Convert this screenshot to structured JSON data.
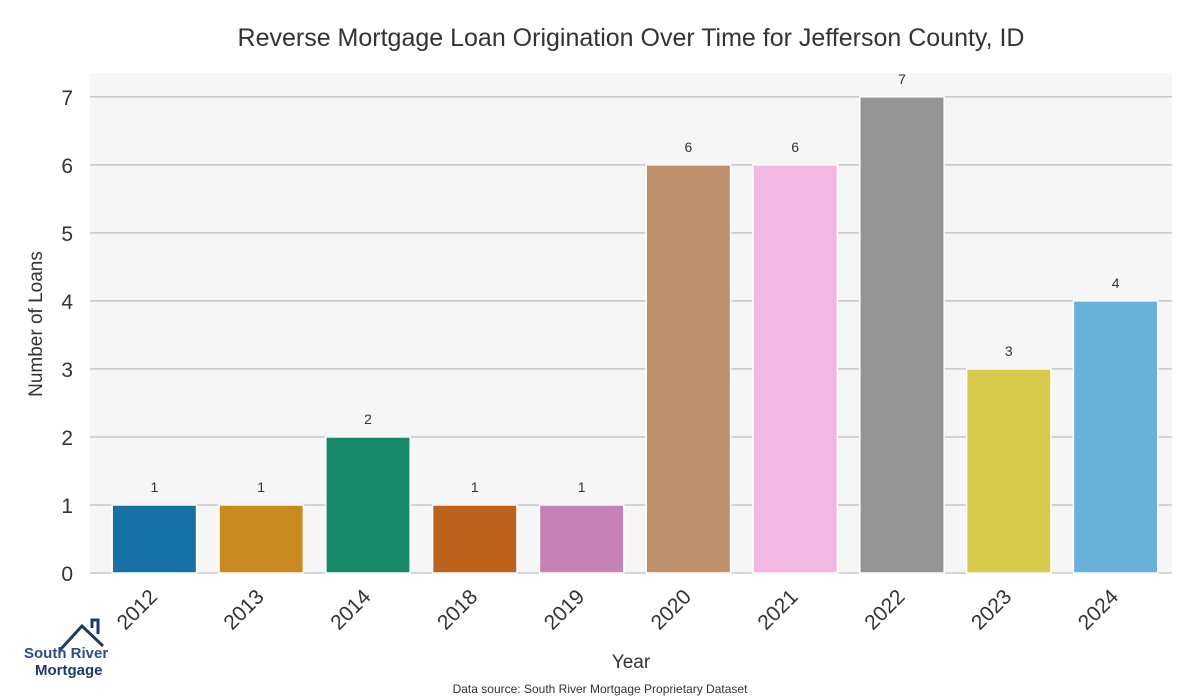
{
  "chart_data": {
    "type": "bar",
    "title": "Reverse Mortgage Loan Origination Over Time for Jefferson County, ID",
    "xlabel": "Year",
    "ylabel": "Number of Loans",
    "categories": [
      "2012",
      "2013",
      "2014",
      "2018",
      "2019",
      "2020",
      "2021",
      "2022",
      "2023",
      "2024"
    ],
    "values": [
      1,
      1,
      2,
      1,
      1,
      6,
      6,
      7,
      3,
      4
    ],
    "colors": [
      "#1770a6",
      "#c98a1f",
      "#168a68",
      "#bd621d",
      "#c582b5",
      "#bc916c",
      "#f2b8e1",
      "#949494",
      "#d6cb4c",
      "#69b1d9"
    ],
    "yticks": [
      0,
      1,
      2,
      3,
      4,
      5,
      6,
      7
    ],
    "ylim": [
      0,
      7.35
    ],
    "grid": true,
    "legend": "none"
  },
  "footer": {
    "source_text": "Data source: South River Mortgage Proprietary Dataset"
  },
  "logo": {
    "line1": "South River",
    "line2": "Mortgage"
  }
}
